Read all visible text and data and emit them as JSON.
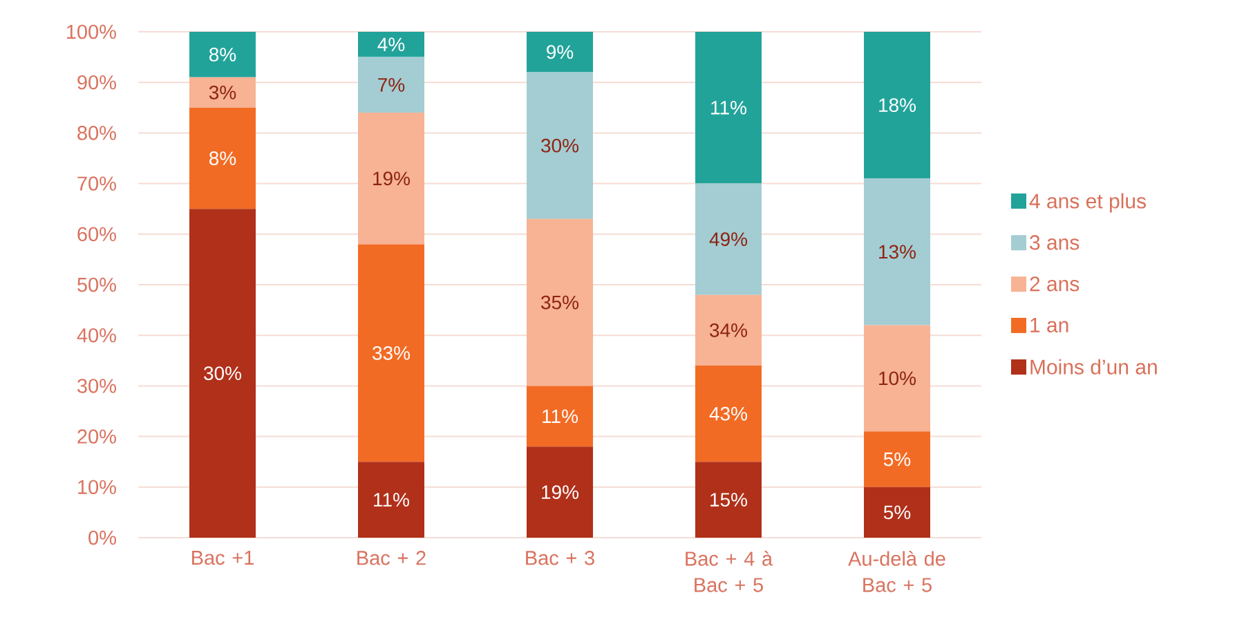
{
  "chart_data": {
    "type": "bar",
    "stacked": true,
    "categories": [
      "Bac +1",
      "Bac + 2",
      "Bac + 3",
      "Bac + 4 à Bac + 5",
      "Au-delà de Bac + 5"
    ],
    "series": [
      {
        "name": "Moins d’un an",
        "color": "#b0301a",
        "values": [
          65,
          15,
          18,
          15,
          10
        ]
      },
      {
        "name": "1 an",
        "color": "#f26b24",
        "values": [
          20,
          43,
          12,
          19,
          11
        ]
      },
      {
        "name": "2 ans",
        "color": "#f7b394",
        "values": [
          6,
          26,
          33,
          14,
          21
        ]
      },
      {
        "name": "3 ans",
        "color": "#a3cdd2",
        "values": [
          0,
          11,
          29,
          22,
          29
        ]
      },
      {
        "name": "4 ans et plus",
        "color": "#22a39a",
        "values": [
          9,
          5,
          8,
          30,
          29
        ]
      }
    ],
    "annotations": [
      "30%",
      "8%",
      "3%",
      "8%",
      "11%",
      "33%",
      "19%",
      "7%",
      "4%",
      "19%",
      "11%",
      "35%",
      "30%",
      "9%",
      "15%",
      "43%",
      "34%",
      "49%",
      "11%",
      "5%",
      "5%",
      "10%",
      "13%",
      "18%"
    ],
    "ylim": [
      0,
      100
    ],
    "yticks": [
      {
        "value": 0,
        "label": "0%"
      },
      {
        "value": 10,
        "label": "10%"
      },
      {
        "value": 20,
        "label": "20%"
      },
      {
        "value": 30,
        "label": "30%"
      },
      {
        "value": 40,
        "label": "40%"
      },
      {
        "value": 50,
        "label": "50%"
      },
      {
        "value": 60,
        "label": "60%"
      },
      {
        "value": 70,
        "label": "70%"
      },
      {
        "value": 80,
        "label": "80%"
      },
      {
        "value": 90,
        "label": "90%"
      },
      {
        "value": 100,
        "label": "100%"
      }
    ],
    "grid": "y",
    "legend": "right"
  }
}
